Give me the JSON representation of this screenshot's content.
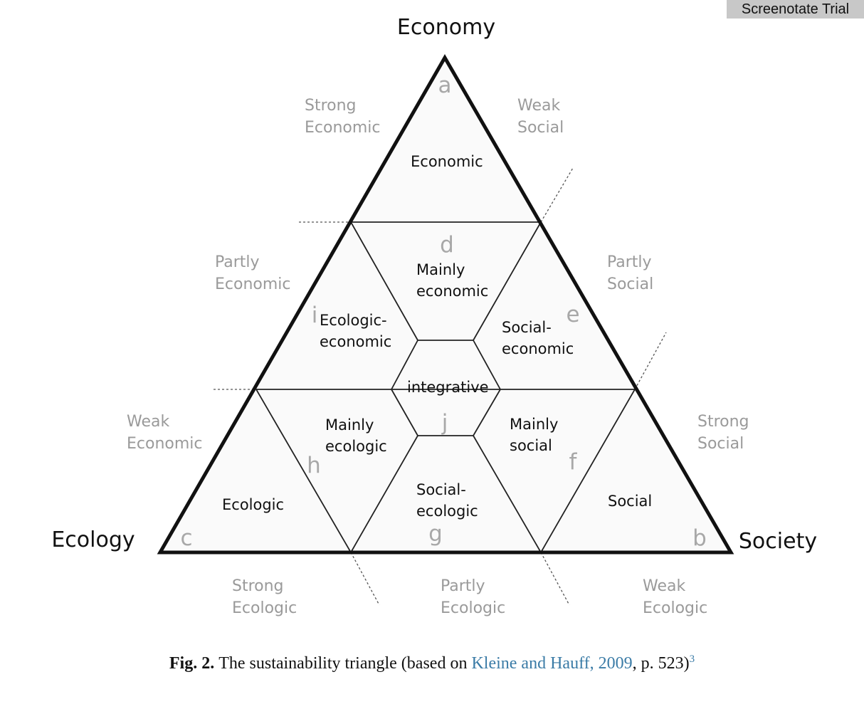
{
  "watermark": "Screenotate Trial",
  "corners": {
    "top": "Economy",
    "left": "Ecology",
    "right": "Society"
  },
  "zones": {
    "strong_economic": [
      "Strong",
      "Economic"
    ],
    "weak_social": [
      "Weak",
      "Social"
    ],
    "partly_economic": [
      "Partly",
      "Economic"
    ],
    "partly_social": [
      "Partly",
      "Social"
    ],
    "weak_economic": [
      "Weak",
      "Economic"
    ],
    "strong_social": [
      "Strong",
      "Social"
    ],
    "strong_ecologic": [
      "Strong",
      "Ecologic"
    ],
    "partly_ecologic": [
      "Partly",
      "Ecologic"
    ],
    "weak_ecologic": [
      "Weak",
      "Ecologic"
    ]
  },
  "cells": {
    "economic": [
      "Economic"
    ],
    "mainly_economic": [
      "Mainly",
      "economic"
    ],
    "ecologic_economic": [
      "Ecologic-",
      "economic"
    ],
    "social_economic": [
      "Social-",
      "economic"
    ],
    "integrative": [
      "integrative"
    ],
    "mainly_ecologic": [
      "Mainly",
      "ecologic"
    ],
    "mainly_social": [
      "Mainly",
      "social"
    ],
    "ecologic": [
      "Ecologic"
    ],
    "social_ecologic": [
      "Social-",
      "ecologic"
    ],
    "social": [
      "Social"
    ]
  },
  "letters": {
    "a": "a",
    "b": "b",
    "c": "c",
    "d": "d",
    "e": "e",
    "f": "f",
    "g": "g",
    "h": "h",
    "i": "i",
    "j": "j"
  },
  "caption": {
    "label": "Fig. 2.",
    "text_before": "The sustainability triangle (based on ",
    "reference": "Kleine and Hauff, 2009",
    "text_after": ", p. 523)",
    "footnote": "3"
  }
}
